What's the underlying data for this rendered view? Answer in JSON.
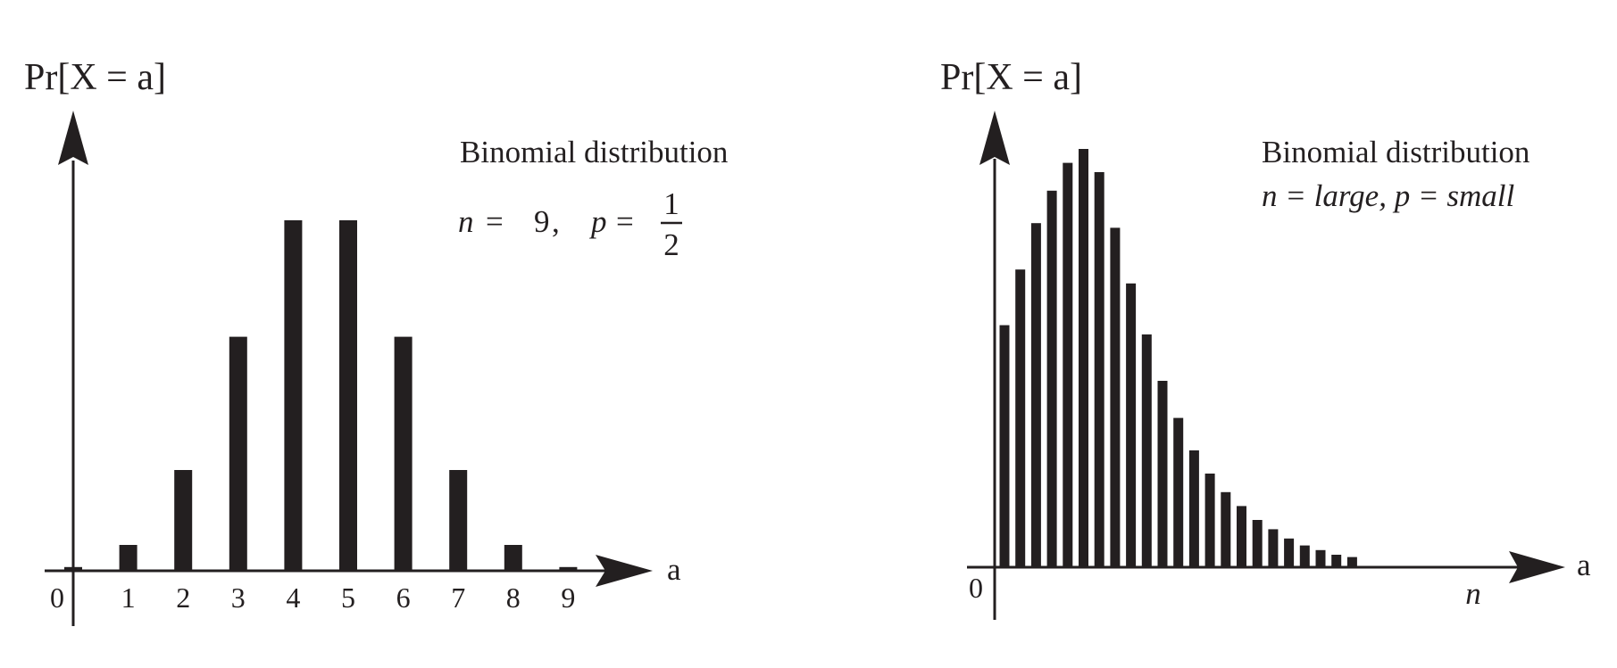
{
  "chart_data": [
    {
      "type": "bar",
      "title": "Binomial distribution",
      "ylabel": "Pr[X = a]",
      "xlabel": "a",
      "origin_label": "0",
      "params": {
        "n_label": "n",
        "n_value": "9",
        "p_label": "p",
        "p_numerator": "1",
        "p_denominator": "2"
      },
      "categories": [
        "0",
        "1",
        "2",
        "3",
        "4",
        "5",
        "6",
        "7",
        "8",
        "9"
      ],
      "values": [
        0.002,
        0.0176,
        0.0703,
        0.1641,
        0.2461,
        0.2461,
        0.1641,
        0.0703,
        0.0176,
        0.002
      ]
    },
    {
      "type": "bar",
      "title": "Binomial distribution",
      "subtitle": "n = large, p = small",
      "ylabel": "Pr[X = a]",
      "xlabel": "a",
      "x_note": "n",
      "origin_label": "0",
      "values": [
        0.52,
        0.64,
        0.74,
        0.81,
        0.87,
        0.9,
        0.85,
        0.73,
        0.61,
        0.5,
        0.4,
        0.32,
        0.25,
        0.2,
        0.16,
        0.13,
        0.1,
        0.08,
        0.06,
        0.045,
        0.035,
        0.025,
        0.02
      ]
    }
  ]
}
